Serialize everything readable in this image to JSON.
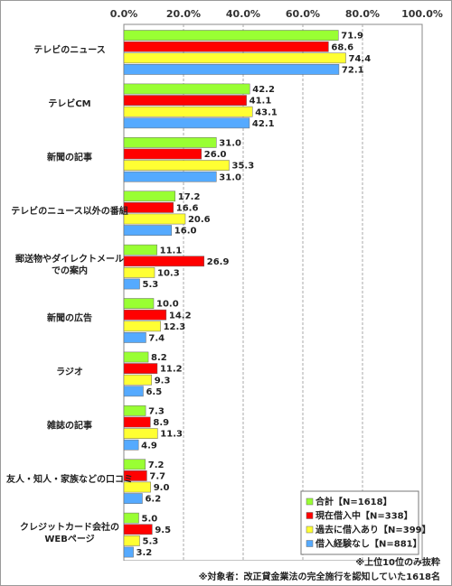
{
  "chart_data": {
    "type": "bar",
    "orientation": "horizontal",
    "categories": [
      "テレビのニュース",
      "テレビCM",
      "新聞の記事",
      "テレビのニュース以外の番組",
      "郵送物やダイレクトメール\nでの案内",
      "新聞の広告",
      "ラジオ",
      "雑誌の記事",
      "友人・知人・家族などの口コミ",
      "クレジットカード会社の\nWEBページ"
    ],
    "series": [
      {
        "name": "合計【N=1618】",
        "color": "#99ff33",
        "values": [
          71.9,
          42.2,
          31.0,
          17.2,
          11.1,
          10.0,
          8.2,
          7.3,
          7.2,
          5.0
        ]
      },
      {
        "name": "現在借入中【N=338】",
        "color": "#ff0000",
        "values": [
          68.6,
          41.1,
          26.0,
          16.6,
          26.9,
          14.2,
          11.2,
          8.9,
          7.7,
          9.5
        ]
      },
      {
        "name": "過去に借入あり【N=399】",
        "color": "#ffff33",
        "values": [
          74.4,
          43.1,
          35.3,
          20.6,
          10.3,
          12.3,
          9.3,
          11.3,
          9.0,
          5.3
        ]
      },
      {
        "name": "借入経験なし【N=881】",
        "color": "#55aaff",
        "values": [
          72.1,
          42.1,
          31.0,
          16.0,
          5.3,
          7.4,
          6.5,
          4.9,
          6.2,
          3.2
        ]
      }
    ],
    "xlim": [
      0,
      100
    ],
    "xticks": [
      "0.0%",
      "20.0%",
      "40.0%",
      "60.0%",
      "80.0%",
      "100.0%"
    ],
    "grid": true,
    "legend_position": "bottom-right"
  },
  "notes": {
    "note1": "※上位10位のみ抜粋",
    "note2": "※対象者：改正貸金業法の完全施行を認知していた1618名"
  }
}
